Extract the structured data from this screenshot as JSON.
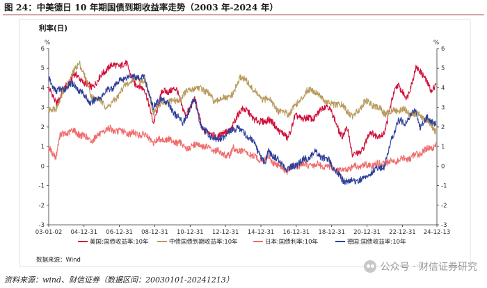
{
  "figure_title": "图 24：中美德日 10 年期国债到期收益率走势（2003 年-2024 年）",
  "source_note": "资料来源：wind、财信证券（数据区间：20030101-20241213）",
  "watermark": "公众号 · 财信证券研究",
  "watermark_icon": "wechat-icon",
  "colors": {
    "title_rule": "#8c1d21",
    "us": "#d0103a",
    "cn": "#b79a5c",
    "jp": "#ef6b6b",
    "de": "#2e3f9a",
    "axis": "#333333"
  },
  "chart_data": {
    "type": "line",
    "title": "利率(日)",
    "unit_left": "%",
    "unit_right": "%",
    "ylim": [
      -3,
      6
    ],
    "yticks": [
      -3,
      -2,
      -1,
      0,
      1,
      2,
      3,
      4,
      5,
      6
    ],
    "xlim": [
      "2003-01-02",
      "2024-12-13"
    ],
    "xticks": [
      "03-01-02",
      "04-12-31",
      "06-12-31",
      "08-12-31",
      "10-12-31",
      "12-12-31",
      "14-12-31",
      "16-12-31",
      "18-12-31",
      "20-12-31",
      "22-12-31",
      "24-12-13"
    ],
    "grid": false,
    "legend_position": "bottom",
    "source": "数据来源：Wind",
    "series": [
      {
        "name": "美国:国债收益率:10年",
        "color": "#d0103a",
        "x": [
          "2003-01",
          "2003-06",
          "2004-06",
          "2005-06",
          "2006-06",
          "2007-06",
          "2007-12",
          "2008-06",
          "2008-12",
          "2009-06",
          "2010-04",
          "2010-10",
          "2011-04",
          "2011-09",
          "2012-07",
          "2013-05",
          "2013-12",
          "2014-12",
          "2015-06",
          "2016-07",
          "2016-12",
          "2017-12",
          "2018-10",
          "2019-08",
          "2019-12",
          "2020-03",
          "2020-08",
          "2021-03",
          "2021-12",
          "2022-06",
          "2022-10",
          "2023-04",
          "2023-10",
          "2024-04",
          "2024-09",
          "2024-12"
        ],
        "values": [
          4.0,
          3.2,
          4.7,
          4.0,
          5.1,
          5.2,
          4.1,
          4.0,
          2.2,
          3.8,
          3.9,
          2.5,
          3.5,
          1.9,
          1.5,
          1.9,
          3.0,
          2.2,
          2.4,
          1.4,
          2.5,
          2.4,
          3.2,
          1.5,
          1.9,
          0.6,
          0.6,
          1.7,
          1.5,
          3.4,
          4.2,
          3.4,
          5.0,
          4.6,
          3.7,
          4.4
        ]
      },
      {
        "name": "中债国债到期收益率:10年",
        "color": "#b79a5c",
        "x": [
          "2003-01",
          "2003-06",
          "2004-06",
          "2004-10",
          "2005-06",
          "2006-06",
          "2007-06",
          "2007-12",
          "2008-06",
          "2008-12",
          "2009-06",
          "2010-06",
          "2010-12",
          "2011-09",
          "2012-06",
          "2013-01",
          "2013-06",
          "2013-11",
          "2014-06",
          "2015-01",
          "2015-06",
          "2016-01",
          "2016-08",
          "2017-06",
          "2017-11",
          "2018-06",
          "2019-01",
          "2019-06",
          "2020-04",
          "2020-11",
          "2021-06",
          "2022-01",
          "2022-06",
          "2023-01",
          "2023-06",
          "2024-01",
          "2024-06",
          "2024-12"
        ],
        "values": [
          2.8,
          3.0,
          4.8,
          5.3,
          3.6,
          3.0,
          4.2,
          4.5,
          4.4,
          2.8,
          3.2,
          3.4,
          3.9,
          4.0,
          3.3,
          3.5,
          3.6,
          4.6,
          4.1,
          3.4,
          3.5,
          2.8,
          2.7,
          3.6,
          4.0,
          3.5,
          3.1,
          3.2,
          2.5,
          3.3,
          3.1,
          2.7,
          2.8,
          2.9,
          2.7,
          2.6,
          2.3,
          1.8
        ]
      },
      {
        "name": "日本:国债利率:10年",
        "color": "#ef6b6b",
        "x": [
          "2003-01",
          "2003-06",
          "2003-09",
          "2004-06",
          "2005-06",
          "2006-05",
          "2007-06",
          "2008-06",
          "2008-12",
          "2009-06",
          "2010-06",
          "2010-10",
          "2011-06",
          "2012-06",
          "2013-04",
          "2013-06",
          "2014-06",
          "2014-12",
          "2015-06",
          "2016-01",
          "2016-07",
          "2016-12",
          "2017-06",
          "2018-06",
          "2019-08",
          "2020-06",
          "2021-06",
          "2022-06",
          "2023-06",
          "2024-03",
          "2024-12"
        ],
        "values": [
          0.9,
          0.5,
          1.6,
          1.8,
          1.3,
          1.9,
          1.7,
          1.6,
          1.2,
          1.4,
          1.2,
          0.9,
          1.1,
          0.8,
          0.5,
          0.9,
          0.6,
          0.3,
          0.4,
          0.0,
          -0.25,
          0.05,
          0.05,
          0.05,
          -0.25,
          0.0,
          0.05,
          0.25,
          0.4,
          0.75,
          1.1
        ]
      },
      {
        "name": "德国:国债收益率:10年",
        "color": "#2e3f9a",
        "x": [
          "2003-01",
          "2003-06",
          "2004-06",
          "2005-06",
          "2006-06",
          "2007-06",
          "2008-06",
          "2008-12",
          "2009-06",
          "2010-08",
          "2011-04",
          "2011-09",
          "2012-07",
          "2013-09",
          "2014-06",
          "2015-04",
          "2015-06",
          "2016-07",
          "2017-06",
          "2018-02",
          "2018-12",
          "2019-08",
          "2020-03",
          "2020-12",
          "2021-06",
          "2022-01",
          "2022-06",
          "2022-10",
          "2023-03",
          "2023-10",
          "2024-01",
          "2024-06",
          "2024-12"
        ],
        "values": [
          4.5,
          3.8,
          4.2,
          3.2,
          3.9,
          4.6,
          4.5,
          3.0,
          3.5,
          2.2,
          3.4,
          1.9,
          1.3,
          2.0,
          1.4,
          0.1,
          0.8,
          -0.2,
          0.3,
          0.7,
          0.2,
          -0.7,
          -0.8,
          -0.6,
          -0.2,
          0.0,
          1.5,
          2.3,
          2.2,
          2.9,
          2.0,
          2.5,
          2.1
        ]
      }
    ]
  }
}
